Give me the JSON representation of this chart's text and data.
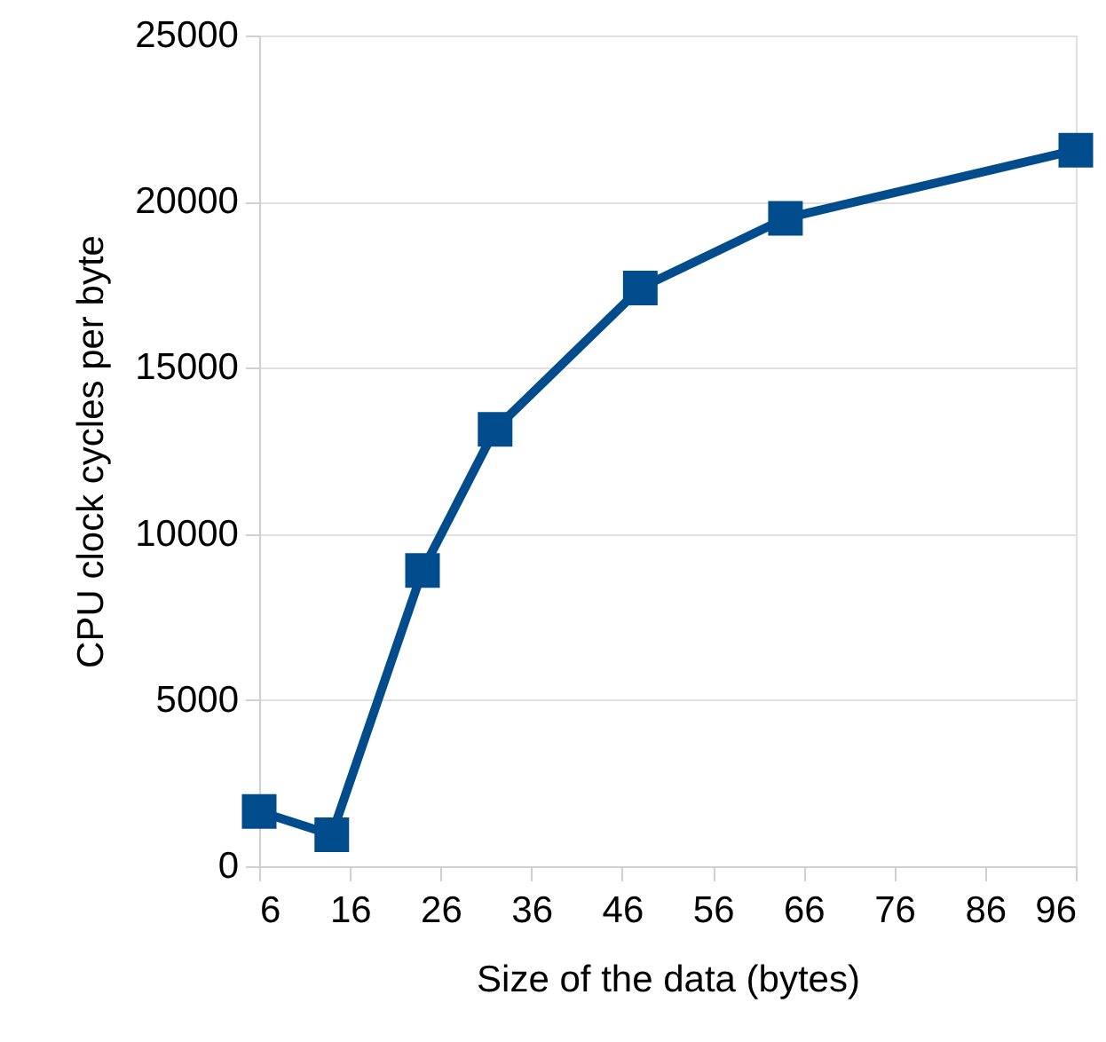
{
  "chart_data": {
    "type": "line",
    "xlabel": "Size of the data (bytes)",
    "ylabel": "CPU clock cycles per byte",
    "x": [
      6,
      14,
      24,
      32,
      48,
      64,
      96
    ],
    "series": [
      {
        "color": "#004c8c",
        "values": [
          1650,
          950,
          8900,
          13150,
          17400,
          19500,
          21550
        ]
      }
    ],
    "xlim": [
      6,
      96
    ],
    "xticks": [
      6,
      16,
      26,
      36,
      46,
      56,
      66,
      76,
      86,
      96
    ],
    "ylim": [
      0,
      25000
    ],
    "yticks": [
      0,
      5000,
      10000,
      15000,
      20000,
      25000
    ],
    "grid": "y",
    "marker": "square",
    "line_style": "solid"
  }
}
